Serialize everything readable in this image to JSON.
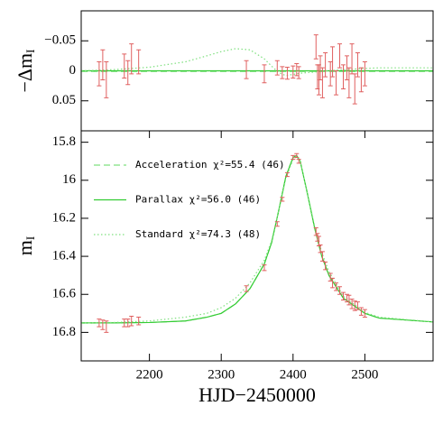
{
  "chart_data": [
    {
      "type": "line",
      "ylabel": "−Δm",
      "ylabel_subscript": "I",
      "xlim": [
        2105,
        2595
      ],
      "ylim": [
        -0.1,
        0.1
      ],
      "y_inverted": true,
      "yticks": [
        {
          "value": -0.05,
          "label": "−0.05"
        },
        0,
        0.05
      ],
      "series": [
        {
          "color": "#7fe07f",
          "style": "dashed",
          "x": [
            2105,
            2595
          ],
          "values": [
            0.001,
            0.001
          ]
        },
        {
          "color": "#33cc33",
          "style": "solid",
          "x": [
            2105,
            2595
          ],
          "values": [
            0,
            0
          ]
        },
        {
          "color": "#7fe07f",
          "style": "dotted",
          "x": [
            2105,
            2150,
            2200,
            2250,
            2280,
            2300,
            2320,
            2340,
            2360,
            2370,
            2380,
            2390,
            2400,
            2405,
            2410,
            2420,
            2430,
            2440,
            2450,
            2470,
            2500,
            2520,
            2595
          ],
          "values": [
            0,
            -0.002,
            -0.006,
            -0.015,
            -0.025,
            -0.032,
            -0.037,
            -0.035,
            -0.02,
            -0.008,
            0.003,
            0.008,
            0.006,
            0.005,
            0.004,
            0.003,
            0.002,
            0.001,
            0,
            -0.002,
            -0.004,
            -0.005,
            -0.005
          ]
        }
      ],
      "points": {
        "color": "#e06060",
        "x": [
          2130,
          2135,
          2140,
          2165,
          2170,
          2175,
          2185,
          2335,
          2360,
          2378,
          2385,
          2392,
          2400,
          2405,
          2408,
          2432,
          2434,
          2436,
          2438,
          2441,
          2445,
          2452,
          2455,
          2460,
          2465,
          2470,
          2475,
          2478,
          2482,
          2486,
          2490,
          2495,
          2500
        ],
        "values": [
          0.005,
          -0.01,
          0.015,
          -0.008,
          0.003,
          -0.02,
          -0.015,
          -0.002,
          0.005,
          -0.005,
          0.003,
          0.004,
          0.002,
          -0.002,
          0.003,
          -0.04,
          0.01,
          0.015,
          -0.005,
          0.02,
          -0.01,
          0.005,
          -0.015,
          0.02,
          -0.025,
          0.01,
          -0.005,
          0.02,
          -0.02,
          0.03,
          -0.01,
          0.015,
          0.005
        ],
        "errors": [
          0.02,
          0.025,
          0.03,
          0.02,
          0.02,
          0.025,
          0.02,
          0.015,
          0.015,
          0.012,
          0.01,
          0.01,
          0.01,
          0.01,
          0.01,
          0.02,
          0.02,
          0.025,
          0.02,
          0.025,
          0.02,
          0.02,
          0.025,
          0.02,
          0.02,
          0.02,
          0.02,
          0.025,
          0.025,
          0.025,
          0.02,
          0.02,
          0.02
        ]
      }
    },
    {
      "type": "line",
      "ylabel": "m",
      "ylabel_subscript": "I",
      "xlabel": "HJD−2450000",
      "xlim": [
        2105,
        2595
      ],
      "xticks": [
        2200,
        2300,
        2400,
        2500
      ],
      "ylim": [
        15.74,
        16.95
      ],
      "y_inverted": true,
      "yticks": [
        15.8,
        16,
        16.2,
        16.4,
        16.6,
        16.8
      ],
      "series": [
        {
          "name": "Acceleration χ²=55.4 (46)",
          "color": "#7fe07f",
          "style": "dashed",
          "x": [
            2105,
            2150,
            2200,
            2250,
            2280,
            2300,
            2320,
            2340,
            2360,
            2370,
            2380,
            2390,
            2400,
            2405,
            2410,
            2420,
            2430,
            2440,
            2450,
            2470,
            2500,
            2520,
            2595
          ],
          "values": [
            16.751,
            16.75,
            16.748,
            16.74,
            16.72,
            16.7,
            16.65,
            16.57,
            16.44,
            16.33,
            16.16,
            15.98,
            15.88,
            15.87,
            15.9,
            16.07,
            16.25,
            16.4,
            16.5,
            16.62,
            16.7,
            16.725,
            16.745
          ]
        },
        {
          "name": "Parallax χ²=56.0 (46)",
          "color": "#33cc33",
          "style": "solid",
          "x": [
            2105,
            2150,
            2200,
            2250,
            2280,
            2300,
            2320,
            2340,
            2360,
            2370,
            2380,
            2390,
            2400,
            2405,
            2410,
            2420,
            2430,
            2440,
            2450,
            2470,
            2500,
            2520,
            2595
          ],
          "values": [
            16.75,
            16.75,
            16.748,
            16.74,
            16.72,
            16.7,
            16.65,
            16.57,
            16.44,
            16.33,
            16.16,
            15.98,
            15.88,
            15.87,
            15.9,
            16.07,
            16.25,
            16.4,
            16.5,
            16.62,
            16.7,
            16.725,
            16.745
          ]
        },
        {
          "name": "Standard χ²=74.3 (48)",
          "color": "#7fe07f",
          "style": "dotted",
          "x": [
            2105,
            2150,
            2200,
            2250,
            2280,
            2300,
            2320,
            2340,
            2360,
            2370,
            2380,
            2390,
            2400,
            2405,
            2410,
            2420,
            2430,
            2440,
            2450,
            2470,
            2500,
            2520,
            2595
          ],
          "values": [
            16.75,
            16.748,
            16.74,
            16.72,
            16.7,
            16.67,
            16.62,
            16.54,
            16.42,
            16.32,
            16.16,
            15.99,
            15.89,
            15.875,
            15.9,
            16.07,
            16.24,
            16.38,
            16.48,
            16.61,
            16.695,
            16.72,
            16.745
          ]
        }
      ],
      "points": {
        "color": "#e06060",
        "x": [
          2130,
          2135,
          2140,
          2165,
          2170,
          2175,
          2185,
          2335,
          2360,
          2378,
          2385,
          2392,
          2400,
          2405,
          2408,
          2432,
          2434,
          2436,
          2438,
          2441,
          2445,
          2452,
          2455,
          2460,
          2465,
          2470,
          2475,
          2478,
          2482,
          2486,
          2490,
          2495,
          2500
        ],
        "values": [
          16.75,
          16.76,
          16.77,
          16.75,
          16.75,
          16.74,
          16.74,
          16.57,
          16.46,
          16.23,
          16.1,
          15.97,
          15.88,
          15.87,
          15.9,
          16.27,
          16.3,
          16.32,
          16.36,
          16.4,
          16.45,
          16.51,
          16.54,
          16.56,
          16.58,
          16.61,
          16.62,
          16.63,
          16.65,
          16.66,
          16.66,
          16.69,
          16.7
        ],
        "errors": [
          0.02,
          0.025,
          0.03,
          0.02,
          0.02,
          0.025,
          0.02,
          0.015,
          0.015,
          0.012,
          0.01,
          0.01,
          0.01,
          0.01,
          0.01,
          0.02,
          0.02,
          0.025,
          0.02,
          0.025,
          0.02,
          0.02,
          0.025,
          0.02,
          0.02,
          0.02,
          0.02,
          0.025,
          0.025,
          0.025,
          0.02,
          0.02,
          0.02
        ]
      }
    }
  ]
}
